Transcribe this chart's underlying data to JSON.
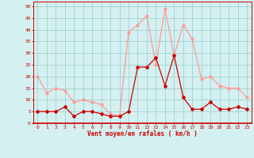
{
  "hours": [
    0,
    1,
    2,
    3,
    4,
    5,
    6,
    7,
    8,
    9,
    10,
    11,
    12,
    13,
    14,
    15,
    16,
    17,
    18,
    19,
    20,
    21,
    22,
    23
  ],
  "moyen": [
    5,
    5,
    5,
    7,
    3,
    5,
    5,
    4,
    3,
    3,
    5,
    24,
    24,
    28,
    16,
    29,
    11,
    6,
    6,
    9,
    6,
    6,
    7,
    6
  ],
  "rafales": [
    20,
    13,
    15,
    14,
    9,
    10,
    9,
    8,
    4,
    3,
    39,
    42,
    46,
    25,
    49,
    29,
    42,
    36,
    19,
    20,
    16,
    15,
    15,
    11
  ],
  "moyen_color": "#cc0000",
  "rafales_color": "#ff9999",
  "bg_color": "#d4f0f0",
  "grid_color": "#99cccc",
  "xlabel": "Vent moyen/en rafales ( km/h )",
  "ylim": [
    0,
    52
  ],
  "yticks": [
    0,
    5,
    10,
    15,
    20,
    25,
    30,
    35,
    40,
    45,
    50
  ],
  "xticks": [
    0,
    1,
    2,
    3,
    4,
    5,
    6,
    7,
    8,
    9,
    10,
    11,
    12,
    13,
    14,
    15,
    16,
    17,
    18,
    19,
    20,
    21,
    22,
    23
  ]
}
